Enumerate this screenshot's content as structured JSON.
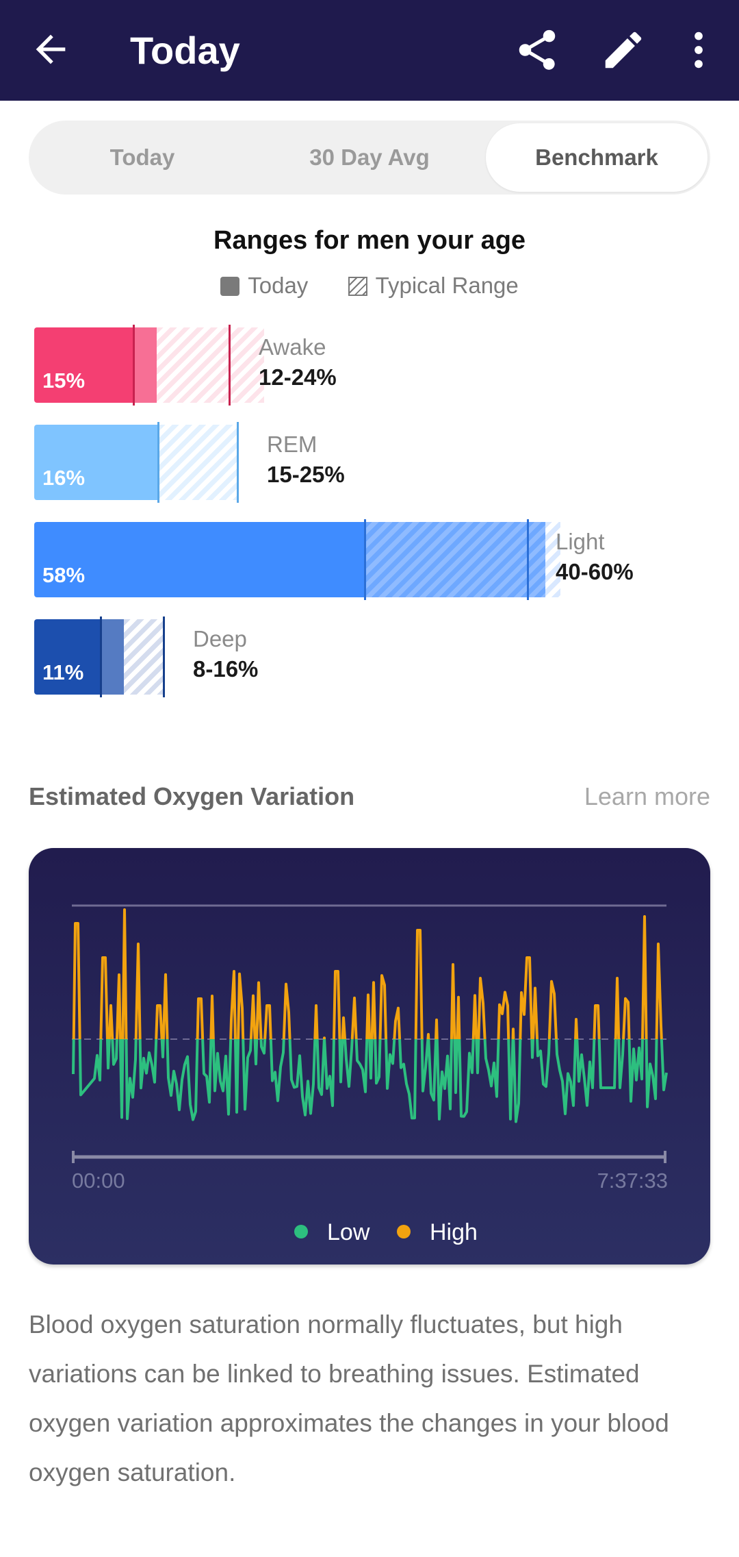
{
  "appbar": {
    "title": "Today"
  },
  "tabs": [
    "Today",
    "30 Day Avg",
    "Benchmark"
  ],
  "benchmark": {
    "title": "Ranges for men your age",
    "legend_today": "Today",
    "legend_typical": "Typical Range",
    "stages": [
      {
        "name": "Awake",
        "today": "15%",
        "range": "12-24%",
        "color": "#f43f72"
      },
      {
        "name": "REM",
        "today": "16%",
        "range": "15-25%",
        "color": "#7fc4ff"
      },
      {
        "name": "Light",
        "today": "58%",
        "range": "40-60%",
        "color": "#3f8cff"
      },
      {
        "name": "Deep",
        "today": "11%",
        "range": "8-16%",
        "color": "#1c4fae"
      }
    ]
  },
  "oxygen": {
    "title": "Estimated Oxygen Variation",
    "learn_more": "Learn more",
    "chart_data": {
      "type": "line",
      "x_start_label": "00:00",
      "x_end_label": "7:37:33",
      "legend": [
        "Low",
        "High"
      ],
      "colors": {
        "low": "#2dbf7f",
        "high": "#f2a30f"
      }
    },
    "description": "Blood oxygen saturation normally fluctuates, but high variations can be linked to breathing issues. Estimated oxygen variation approximates the changes in your blood oxygen saturation."
  }
}
